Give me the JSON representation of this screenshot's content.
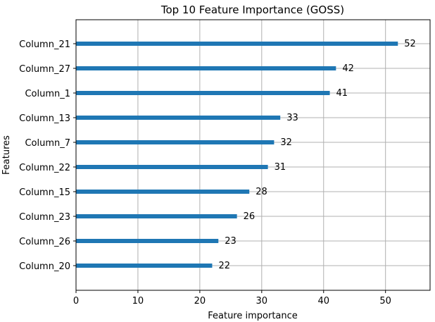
{
  "chart_data": {
    "type": "bar",
    "orientation": "horizontal",
    "title": "Top 10 Feature Importance (GOSS)",
    "xlabel": "Feature importance",
    "ylabel": "Features",
    "categories": [
      "Column_21",
      "Column_27",
      "Column_1",
      "Column_13",
      "Column_7",
      "Column_22",
      "Column_15",
      "Column_23",
      "Column_26",
      "Column_20"
    ],
    "values": [
      52,
      42,
      41,
      33,
      32,
      31,
      28,
      26,
      23,
      22
    ],
    "xlim": [
      0,
      57.2
    ],
    "xticks": [
      0,
      10,
      20,
      30,
      40,
      50
    ],
    "grid": true,
    "bar_color": "#1f77b4",
    "grid_color": "#b0b0b0"
  }
}
